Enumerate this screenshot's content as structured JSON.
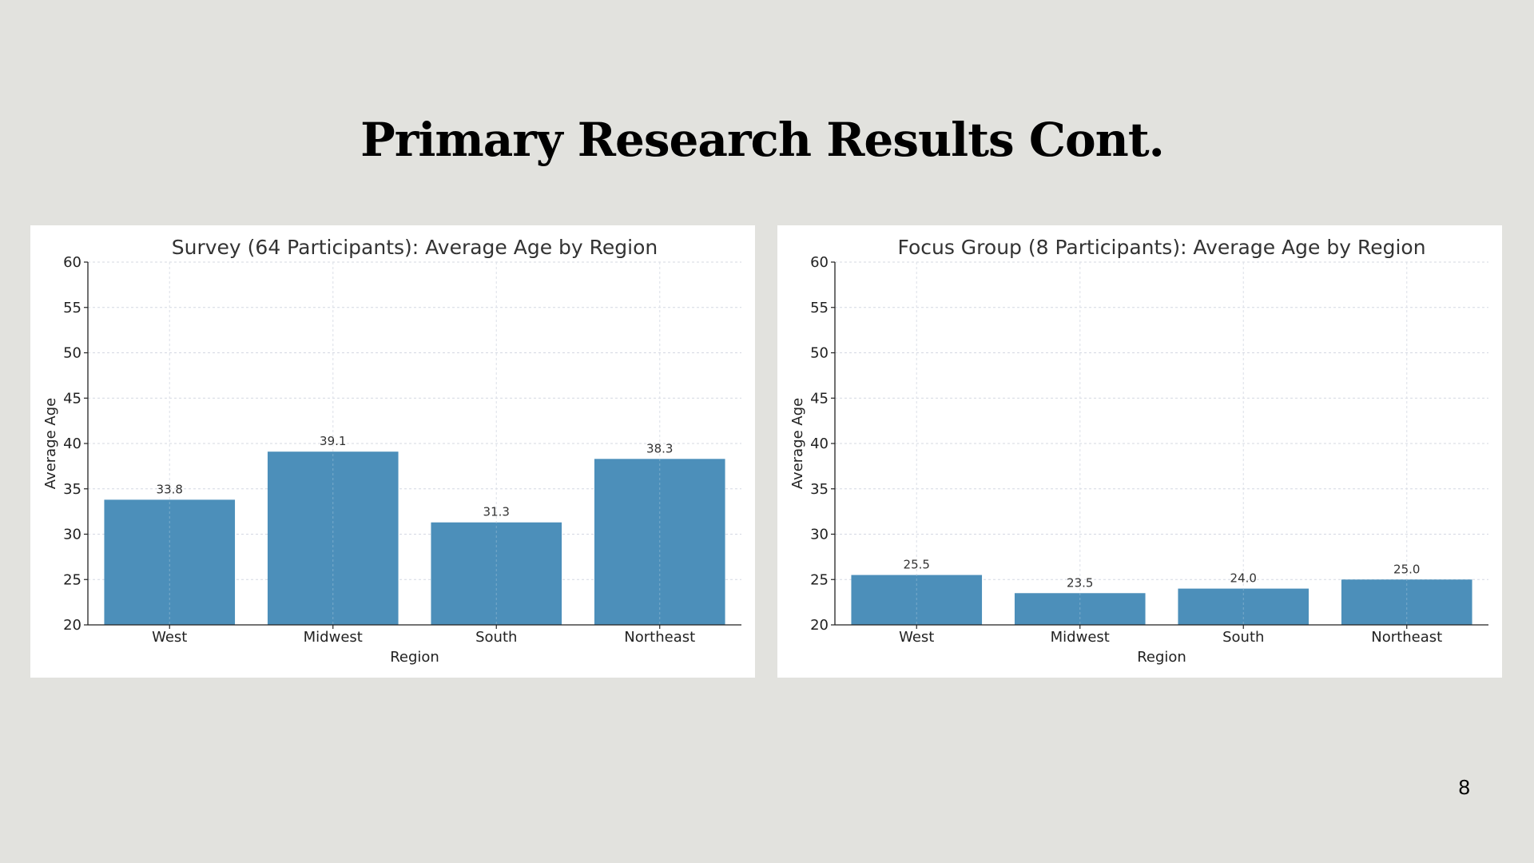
{
  "slide": {
    "title": "Primary Research Results Cont.",
    "page_number": "8"
  },
  "colors": {
    "background": "#e2e2de",
    "panel": "#ffffff",
    "bar": "#4c8fba",
    "grid": "#d4d8e2",
    "text": "#333333"
  },
  "chart_data": [
    {
      "type": "bar",
      "title": "Survey (64 Participants): Average Age by Region",
      "xlabel": "Region",
      "ylabel": "Average Age",
      "categories": [
        "West",
        "Midwest",
        "South",
        "Northeast"
      ],
      "values": [
        33.8,
        39.1,
        31.3,
        38.3
      ],
      "value_labels": [
        "33.8",
        "39.1",
        "31.3",
        "38.3"
      ],
      "ylim": [
        20,
        60
      ],
      "yticks": [
        20,
        25,
        30,
        35,
        40,
        45,
        50,
        55,
        60
      ],
      "grid": true
    },
    {
      "type": "bar",
      "title": "Focus Group (8 Participants): Average Age by Region",
      "xlabel": "Region",
      "ylabel": "Average Age",
      "categories": [
        "West",
        "Midwest",
        "South",
        "Northeast"
      ],
      "values": [
        25.5,
        23.5,
        24.0,
        25.0
      ],
      "value_labels": [
        "25.5",
        "23.5",
        "24.0",
        "25.0"
      ],
      "ylim": [
        20,
        60
      ],
      "yticks": [
        20,
        25,
        30,
        35,
        40,
        45,
        50,
        55,
        60
      ],
      "grid": true
    }
  ]
}
